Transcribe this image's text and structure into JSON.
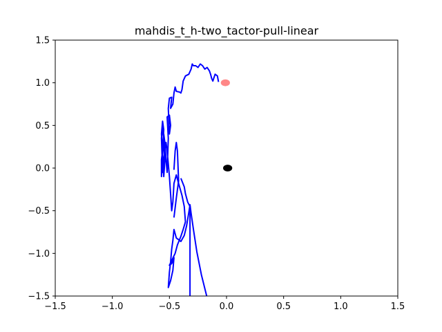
{
  "chart_data": {
    "type": "line",
    "title": "mahdis_t_h-two_tactor-pull-linear",
    "xlabel": "",
    "ylabel": "",
    "xlim": [
      -1.5,
      1.5
    ],
    "ylim": [
      -1.5,
      1.5
    ],
    "grid": false,
    "x_ticks": [
      -1.5,
      -1.0,
      -0.5,
      0.0,
      0.5,
      1.0,
      1.5
    ],
    "y_ticks": [
      -1.5,
      -1.0,
      -0.5,
      0.0,
      0.5,
      1.0,
      1.5
    ],
    "x_tick_labels": [
      "−1.5",
      "−1.0",
      "−0.5",
      "0.0",
      "0.5",
      "1.0",
      "1.5"
    ],
    "y_tick_labels": [
      "−1.5",
      "−1.0",
      "−0.5",
      "0.0",
      "0.5",
      "1.0",
      "1.5"
    ],
    "series": [
      {
        "color": "#0000ff",
        "points": [
          [
            -0.17,
            -1.52
          ],
          [
            -0.22,
            -1.25
          ],
          [
            -0.26,
            -0.98
          ],
          [
            -0.29,
            -0.72
          ],
          [
            -0.31,
            -0.53
          ],
          [
            -0.32,
            -0.43
          ],
          [
            -0.33,
            -0.52
          ],
          [
            -0.35,
            -0.68
          ],
          [
            -0.37,
            -0.79
          ],
          [
            -0.4,
            -0.86
          ],
          [
            -0.44,
            -0.82
          ],
          [
            -0.46,
            -0.72
          ],
          [
            -0.47,
            -0.85
          ],
          [
            -0.48,
            -0.95
          ],
          [
            -0.49,
            -1.1
          ],
          [
            -0.5,
            -1.22
          ],
          [
            -0.51,
            -1.4
          ],
          [
            -0.49,
            -1.32
          ],
          [
            -0.47,
            -1.2
          ],
          [
            -0.46,
            -1.05
          ],
          [
            -0.48,
            -1.12
          ],
          [
            -0.5,
            -1.14
          ],
          [
            -0.45,
            -1.0
          ],
          [
            -0.43,
            -0.9
          ],
          [
            -0.4,
            -0.8
          ],
          [
            -0.38,
            -0.72
          ],
          [
            -0.36,
            -0.63
          ],
          [
            -0.37,
            -0.45
          ],
          [
            -0.39,
            -0.32
          ],
          [
            -0.42,
            -0.18
          ],
          [
            -0.44,
            -0.08
          ],
          [
            -0.46,
            -0.18
          ],
          [
            -0.47,
            -0.4
          ],
          [
            -0.48,
            -0.5
          ],
          [
            -0.49,
            -0.3
          ],
          [
            -0.5,
            -0.1
          ],
          [
            -0.51,
            0.05
          ],
          [
            -0.52,
            0.2
          ],
          [
            -0.53,
            0.3
          ],
          [
            -0.55,
            0.1
          ],
          [
            -0.56,
            -0.05
          ],
          [
            -0.57,
            0.35
          ],
          [
            -0.56,
            0.5
          ],
          [
            -0.55,
            0.3
          ],
          [
            -0.54,
            0.08
          ],
          [
            -0.55,
            -0.1
          ],
          [
            -0.57,
            0.4
          ],
          [
            -0.56,
            0.55
          ],
          [
            -0.55,
            0.45
          ],
          [
            -0.56,
            0.2
          ],
          [
            -0.57,
            0.1
          ],
          [
            -0.57,
            -0.1
          ],
          [
            -0.56,
            0.15
          ],
          [
            -0.55,
            0.4
          ],
          [
            -0.54,
            0.3
          ],
          [
            -0.53,
            0.1
          ],
          [
            -0.52,
            -0.05
          ],
          [
            -0.51,
            0.35
          ],
          [
            -0.52,
            0.6
          ],
          [
            -0.5,
            0.62
          ],
          [
            -0.49,
            0.5
          ],
          [
            -0.5,
            0.4
          ],
          [
            -0.51,
            0.7
          ],
          [
            -0.5,
            0.82
          ],
          [
            -0.48,
            0.83
          ],
          [
            -0.49,
            0.7
          ],
          [
            -0.47,
            0.75
          ],
          [
            -0.46,
            0.88
          ],
          [
            -0.45,
            0.95
          ],
          [
            -0.44,
            0.9
          ],
          [
            -0.41,
            0.89
          ],
          [
            -0.4,
            0.88
          ],
          [
            -0.39,
            0.92
          ],
          [
            -0.38,
            1.02
          ],
          [
            -0.36,
            1.08
          ],
          [
            -0.33,
            1.1
          ],
          [
            -0.31,
            1.16
          ],
          [
            -0.3,
            1.22
          ],
          [
            -0.29,
            1.2
          ],
          [
            -0.27,
            1.2
          ],
          [
            -0.25,
            1.18
          ],
          [
            -0.23,
            1.22
          ],
          [
            -0.21,
            1.2
          ],
          [
            -0.19,
            1.16
          ],
          [
            -0.17,
            1.18
          ],
          [
            -0.15,
            1.14
          ],
          [
            -0.14,
            1.1
          ],
          [
            -0.13,
            1.05
          ],
          [
            -0.12,
            1.02
          ],
          [
            -0.11,
            1.06
          ],
          [
            -0.1,
            1.1
          ],
          [
            -0.08,
            1.08
          ],
          [
            -0.07,
            1.01
          ]
        ]
      },
      {
        "color": "#0000ff",
        "points": [
          [
            -0.32,
            -1.52
          ],
          [
            -0.32,
            -0.45
          ],
          [
            -0.34,
            -0.4
          ],
          [
            -0.36,
            -0.3
          ],
          [
            -0.37,
            -0.22
          ],
          [
            -0.4,
            -0.12
          ]
        ]
      },
      {
        "color": "#0000ff",
        "points": [
          [
            -0.46,
            -0.58
          ],
          [
            -0.44,
            -0.35
          ],
          [
            -0.42,
            -0.15
          ],
          [
            -0.43,
            0.2
          ],
          [
            -0.44,
            0.3
          ],
          [
            -0.45,
            0.2
          ],
          [
            -0.46,
            -0.02
          ]
        ]
      }
    ],
    "markers": [
      {
        "x": -0.01,
        "y": 1.0,
        "rx": 0.04,
        "ry": 0.04,
        "color": "#ff7a7a",
        "opacity": 0.9
      },
      {
        "x": 0.01,
        "y": 0.0,
        "rx": 0.04,
        "ry": 0.04,
        "color": "#000000",
        "opacity": 1.0
      }
    ]
  }
}
